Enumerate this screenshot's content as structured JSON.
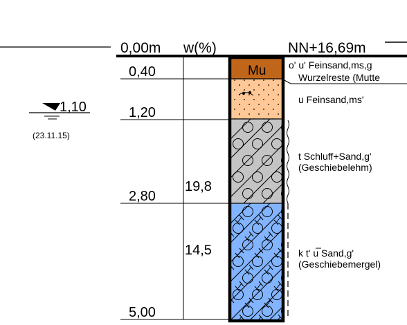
{
  "header": {
    "depth_start": "0,00m",
    "water_content_header": "w(%)",
    "elevation": "NN+16,69m"
  },
  "groundwater": {
    "level": "1,10",
    "date": "(23.11.15)"
  },
  "depth_labels": [
    "0,40",
    "1,20",
    "2,80",
    "5,00"
  ],
  "water_contents": [
    "19,8",
    "14,5"
  ],
  "layers": [
    {
      "code": "Mu",
      "color": "#c0661b",
      "description": [
        "o' u' Feinsand,ms,g",
        "Wurzelreste (Mutte"
      ]
    },
    {
      "code": "",
      "color": "#ffc896",
      "description": [
        "u Feinsand,ms'"
      ]
    },
    {
      "code": "",
      "color": "#c4c4c4",
      "description": [
        "t Schluff+Sand,g'",
        "(Geschiebelehm)"
      ]
    },
    {
      "code": "",
      "color": "#82b4ff",
      "description": [
        "k t' u Sand,g'",
        "(Geschiebemergel)"
      ]
    }
  ]
}
